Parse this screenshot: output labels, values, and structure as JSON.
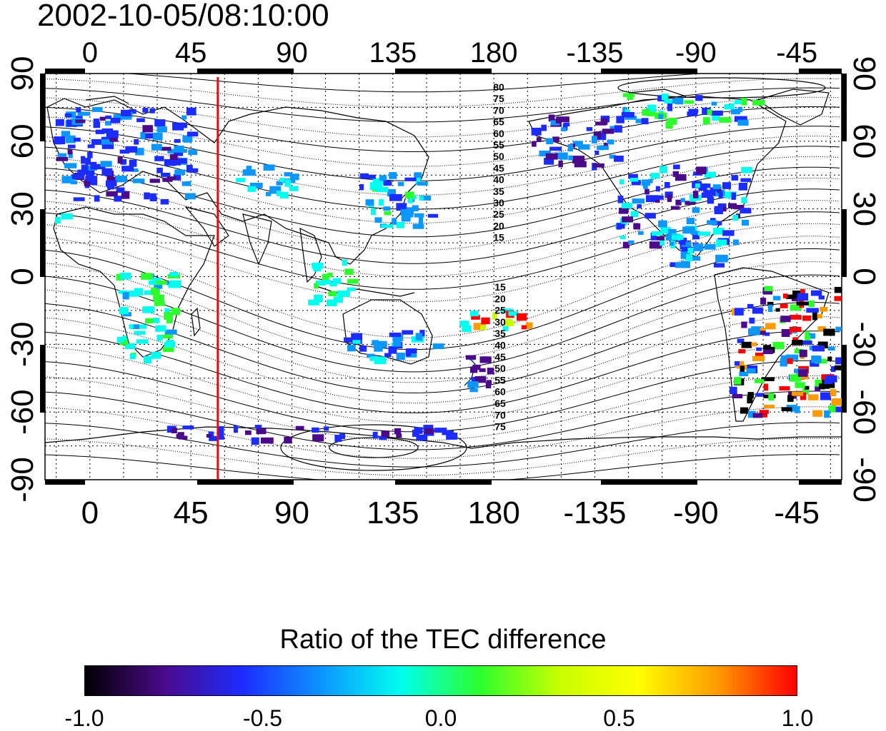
{
  "title": "2002-10-05/08:10:00",
  "colorbar": {
    "title": "Ratio of the TEC difference",
    "min": -1.0,
    "max": 1.0,
    "tick_labels": [
      "-1.0",
      "-0.5",
      "0.0",
      "0.5",
      "1.0"
    ],
    "colormap": [
      "#000000",
      "#4a0a8a",
      "#1c2cff",
      "#0c96ff",
      "#00ffee",
      "#2cff2c",
      "#c8ff00",
      "#ffff00",
      "#ff9a00",
      "#ff0000"
    ]
  },
  "map": {
    "x_ticks": [
      "0",
      "45",
      "90",
      "135",
      "180",
      "-135",
      "-90",
      "-45"
    ],
    "x_tick_values": [
      0,
      45,
      90,
      135,
      180,
      225,
      270,
      315
    ],
    "y_ticks": [
      "90",
      "60",
      "30",
      "0",
      "-30",
      "-60",
      "-90"
    ],
    "y_tick_values": [
      90,
      60,
      30,
      0,
      -30,
      -60,
      -90
    ],
    "lon_range": [
      -20,
      335
    ],
    "lat_range": [
      -90,
      90
    ],
    "grid": true,
    "terminator_longitude": 57,
    "terminator_color": "#ff0000",
    "contour_labels_north": [
      "80",
      "75",
      "70",
      "65",
      "60",
      "55",
      "50",
      "45",
      "40",
      "35",
      "30",
      "25",
      "20",
      "15"
    ],
    "contour_labels_south": [
      "15",
      "20",
      "25",
      "30",
      "35",
      "40",
      "45",
      "50",
      "55",
      "60",
      "65",
      "70",
      "75"
    ]
  }
}
